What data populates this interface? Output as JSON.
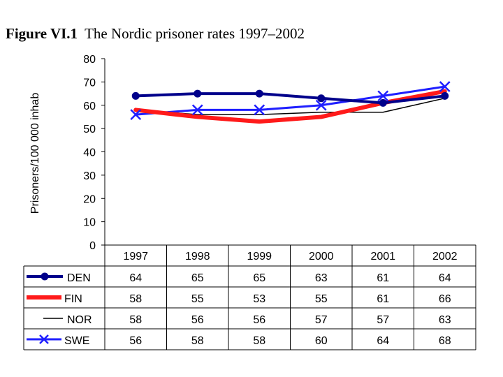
{
  "title": {
    "figure_number": "Figure VI.1",
    "caption": "The Nordic prisoner rates 1997–2002"
  },
  "chart_data": {
    "type": "line",
    "title": "The Nordic prisoner rates 1997–2002",
    "xlabel": "",
    "ylabel": "Prisoners/100 000 inhab",
    "ylim": [
      0,
      80
    ],
    "yticks": [
      0,
      10,
      20,
      30,
      40,
      50,
      60,
      70,
      80
    ],
    "grid": false,
    "legend": "data table below plot",
    "categories": [
      "1997",
      "1998",
      "1999",
      "2000",
      "2001",
      "2002"
    ],
    "series": [
      {
        "name": "DEN",
        "color": "#00008b",
        "marker": "circle",
        "values": [
          64,
          65,
          65,
          63,
          61,
          64
        ]
      },
      {
        "name": "FIN",
        "color": "#ff1a1a",
        "marker": "none",
        "values": [
          58,
          55,
          53,
          55,
          61,
          66
        ]
      },
      {
        "name": "NOR",
        "color": "#000000",
        "marker": "none",
        "values": [
          58,
          56,
          56,
          57,
          57,
          63
        ]
      },
      {
        "name": "SWE",
        "color": "#1f1fff",
        "marker": "x",
        "values": [
          56,
          58,
          58,
          60,
          64,
          68
        ]
      }
    ]
  }
}
